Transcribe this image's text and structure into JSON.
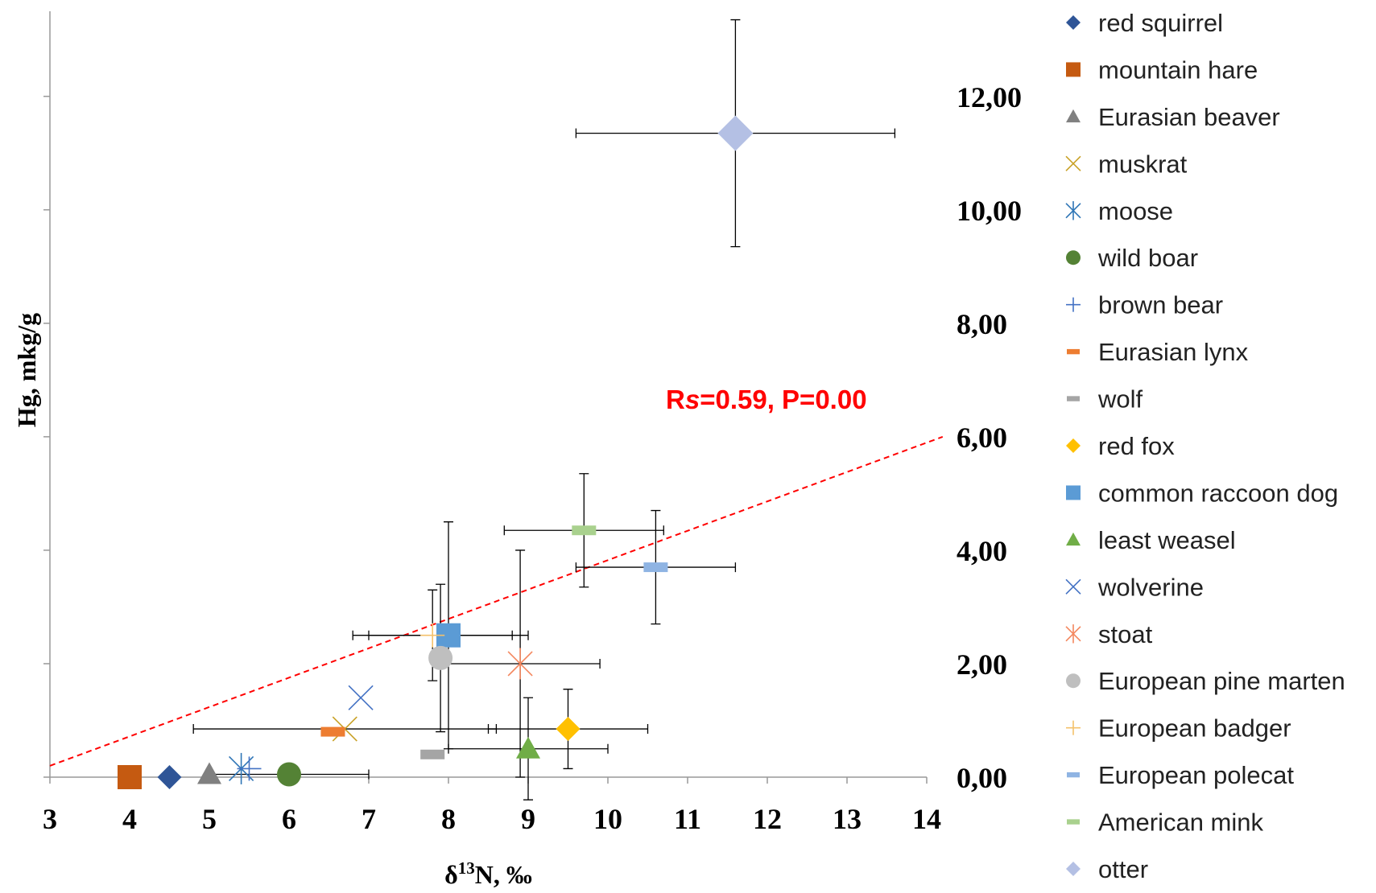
{
  "chart_data": {
    "type": "scatter",
    "x_label": [
      "δ",
      "13",
      "N, ‰"
    ],
    "y_label": "Hg, mkg/g",
    "annotation": [
      "R",
      "s",
      "=0.59, P=0.00"
    ],
    "xlim": [
      3,
      14
    ],
    "xticks": [
      3,
      4,
      5,
      6,
      7,
      8,
      9,
      10,
      11,
      12,
      13,
      14
    ],
    "ylim": [
      0,
      13.5
    ],
    "yticks": [
      {
        "value": 0,
        "label": "0,00"
      },
      {
        "value": 2,
        "label": "2,00"
      },
      {
        "value": 4,
        "label": "4,00"
      },
      {
        "value": 6,
        "label": "6,00"
      },
      {
        "value": 8,
        "label": "8,00"
      },
      {
        "value": 10,
        "label": "10,00"
      },
      {
        "value": 12,
        "label": "12,00"
      }
    ],
    "trendline": {
      "color": "#ff0000",
      "x": [
        3,
        14.2
      ],
      "values": [
        0.2,
        6.0
      ]
    },
    "series": [
      {
        "name": "red squirrel",
        "color": "#2f5597",
        "marker": "diamond",
        "x": [
          4.5
        ],
        "values": [
          0.0
        ]
      },
      {
        "name": "mountain hare",
        "color": "#c55a11",
        "marker": "square",
        "x": [
          4.0
        ],
        "values": [
          0.0
        ]
      },
      {
        "name": "Eurasian beaver",
        "color": "#808080",
        "marker": "triangle",
        "x": [
          5.0
        ],
        "values": [
          0.05
        ]
      },
      {
        "name": "muskrat",
        "color": "#c9a227",
        "marker": "x",
        "x": [
          6.7
        ],
        "values": [
          0.85
        ],
        "xerr": [
          1.9
        ]
      },
      {
        "name": "moose",
        "color": "#2e75b6",
        "marker": "asterisk",
        "x": [
          5.4
        ],
        "values": [
          0.15
        ]
      },
      {
        "name": "wild boar",
        "color": "#548235",
        "marker": "circle",
        "x": [
          6.0
        ],
        "values": [
          0.05
        ],
        "xerr": [
          1.0
        ]
      },
      {
        "name": "brown bear",
        "color": "#4472c4",
        "marker": "plus",
        "x": [
          5.5
        ],
        "values": [
          0.15
        ]
      },
      {
        "name": "Eurasian lynx",
        "color": "#ed7d31",
        "marker": "dash",
        "x": [
          6.55
        ],
        "values": [
          0.8
        ]
      },
      {
        "name": "wolf",
        "color": "#a5a5a5",
        "marker": "dash",
        "x": [
          7.8
        ],
        "values": [
          0.4
        ]
      },
      {
        "name": "red fox",
        "color": "#ffc000",
        "marker": "diamond",
        "x": [
          9.5
        ],
        "values": [
          0.85
        ],
        "xerr": [
          1.0
        ],
        "yerr": [
          0.7
        ]
      },
      {
        "name": "common raccoon dog",
        "color": "#5b9bd5",
        "marker": "square",
        "x": [
          8.0
        ],
        "values": [
          2.5
        ],
        "xerr": [
          1.0
        ],
        "yerr": [
          2.0
        ]
      },
      {
        "name": "least weasel",
        "color": "#70ad47",
        "marker": "triangle",
        "x": [
          9.0
        ],
        "values": [
          0.5
        ],
        "xerr": [
          1.0
        ],
        "yerr": [
          0.9
        ]
      },
      {
        "name": "wolverine",
        "color": "#4472c4",
        "marker": "x",
        "x": [
          6.9
        ],
        "values": [
          1.4
        ]
      },
      {
        "name": "stoat",
        "color": "#f4875e",
        "marker": "asterisk",
        "x": [
          8.9
        ],
        "values": [
          2.0
        ],
        "xerr": [
          1.0
        ],
        "yerr": [
          2.0
        ]
      },
      {
        "name": "European pine marten",
        "color": "#bfbfbf",
        "marker": "circle",
        "x": [
          7.9
        ],
        "values": [
          2.1
        ],
        "yerr": [
          1.3
        ]
      },
      {
        "name": "European badger",
        "color": "#f4c16b",
        "marker": "plus",
        "x": [
          7.8
        ],
        "values": [
          2.5
        ],
        "xerr": [
          1.0
        ],
        "yerr": [
          0.8
        ]
      },
      {
        "name": "European polecat",
        "color": "#8fb4e3",
        "marker": "dash",
        "x": [
          10.6
        ],
        "values": [
          3.7
        ],
        "xerr": [
          1.0
        ],
        "yerr": [
          1.0
        ]
      },
      {
        "name": "American mink",
        "color": "#a9d18e",
        "marker": "dash",
        "x": [
          9.7
        ],
        "values": [
          4.35
        ],
        "xerr": [
          1.0
        ],
        "yerr": [
          1.0
        ]
      },
      {
        "name": "otter",
        "color": "#b4c0e4",
        "marker": "diamond",
        "x": [
          11.6
        ],
        "values": [
          11.35
        ],
        "xerr": [
          2.0
        ],
        "yerr": [
          2.0
        ]
      }
    ]
  }
}
